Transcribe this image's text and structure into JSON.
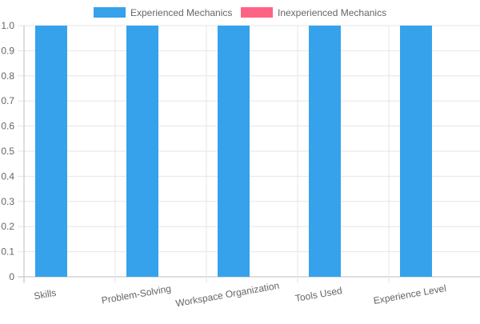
{
  "chart_data": {
    "type": "bar",
    "categories": [
      "Skills",
      "Problem-Solving",
      "Workspace Organization",
      "Tools Used",
      "Experience Level"
    ],
    "series": [
      {
        "name": "Experienced Mechanics",
        "values": [
          1,
          1,
          1,
          1,
          1
        ],
        "color": "#36a2eb"
      },
      {
        "name": "Inexperienced Mechanics",
        "values": [
          0,
          0,
          0,
          0,
          0
        ],
        "color": "#ff6384"
      }
    ],
    "ylim": [
      0,
      1.0
    ],
    "yticks": [
      "0",
      "0.1",
      "0.2",
      "0.3",
      "0.4",
      "0.5",
      "0.6",
      "0.7",
      "0.8",
      "0.9",
      "1.0"
    ],
    "grid": true,
    "legend_position": "top",
    "title": "",
    "xlabel": "",
    "ylabel": ""
  }
}
